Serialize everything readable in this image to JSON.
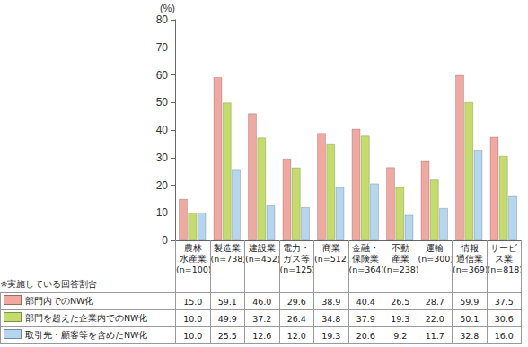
{
  "chart_data": {
    "type": "bar",
    "ylabel": "(%)",
    "annotations": [
      "※実施している回答割合"
    ],
    "categories": [
      "農林\n水産業\n(n=100)",
      "製造業\n(n=738)",
      "建設業\n(n=452)",
      "電力・\nガス等\n(n=125)",
      "商業\n(n=512)",
      "金融・\n保険業\n(n=364)",
      "不動\n産業\n(n=238)",
      "運輸\n(n=300)",
      "情報\n通信業\n(n=369)",
      "サービ\nス業\n(n=818)"
    ],
    "series": [
      {
        "name": "部門内でのNW化",
        "color": "#f0a8a0",
        "values": [
          15.0,
          59.1,
          46.0,
          29.6,
          38.9,
          40.4,
          26.5,
          28.7,
          59.9,
          37.5
        ],
        "value_labels": [
          "15.0",
          "59.1",
          "46.0",
          "29.6",
          "38.9",
          "40.4",
          "26.5",
          "28.7",
          "59.9",
          "37.5"
        ]
      },
      {
        "name": "部門を超えた企業内でのNW化",
        "color": "#c4dc6a",
        "values": [
          10.0,
          49.9,
          37.2,
          26.4,
          34.8,
          37.9,
          19.3,
          22.0,
          50.1,
          30.6
        ],
        "value_labels": [
          "10.0",
          "49.9",
          "37.2",
          "26.4",
          "34.8",
          "37.9",
          "19.3",
          "22.0",
          "50.1",
          "30.6"
        ]
      },
      {
        "name": "取引先・顧客等を含めたNW化",
        "color": "#b4d6f0",
        "values": [
          10.0,
          25.5,
          12.6,
          12.0,
          19.3,
          20.6,
          9.2,
          11.7,
          32.8,
          16.0
        ],
        "value_labels": [
          "10.0",
          "25.5",
          "12.6",
          "12.0",
          "19.3",
          "20.6",
          "9.2",
          "11.7",
          "32.8",
          "16.0"
        ]
      }
    ],
    "ylim": [
      0,
      80
    ],
    "yticks": [
      0,
      10,
      20,
      30,
      40,
      50,
      60,
      70,
      80
    ],
    "grid": false
  }
}
